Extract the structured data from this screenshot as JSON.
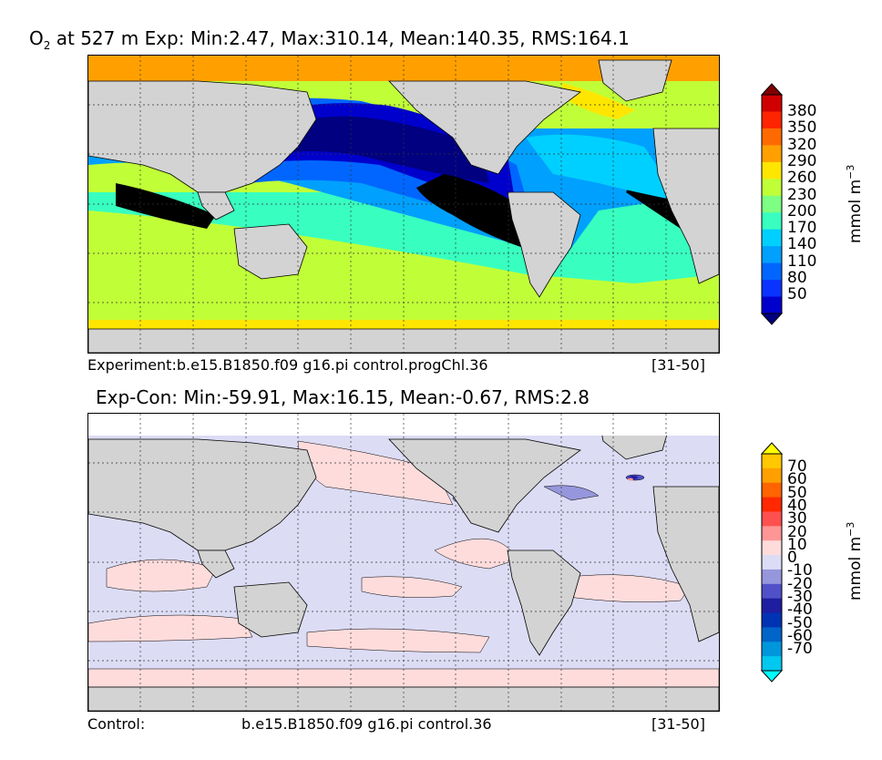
{
  "top": {
    "title_prefix": "O",
    "title_sub": "2",
    "title_rest": " at 527 m Exp: Min:2.47, Max:310.14, Mean:140.35, RMS:164.1",
    "footer_left": "Experiment:b.e15.B1850.f09 g16.pi control.progChl.36",
    "footer_right": "[31-50]",
    "colorbar": {
      "ticks": [
        "380",
        "350",
        "320",
        "290",
        "260",
        "230",
        "200",
        "170",
        "140",
        "110",
        "80",
        "50"
      ],
      "colors": [
        "#000080",
        "#0000cd",
        "#0a33ff",
        "#0066ff",
        "#00a0ff",
        "#00d0ff",
        "#38ffc0",
        "#7cff82",
        "#c0ff38",
        "#ffe600",
        "#ffa000",
        "#ff6a00",
        "#ff2400",
        "#d00000",
        "#800000"
      ],
      "unit": "mmol m",
      "unit_sup": "−3"
    }
  },
  "bottom": {
    "title": "Exp-Con: Min:-59.91, Max:16.15, Mean:-0.67, RMS:2.8",
    "footer_left": "Control:",
    "footer_mid": "b.e15.B1850.f09 g16.pi control.36",
    "footer_right": "[31-50]",
    "colorbar": {
      "ticks": [
        "70",
        "60",
        "50",
        "40",
        "30",
        "20",
        "10",
        "0",
        "-10",
        "-20",
        "-30",
        "-40",
        "-50",
        "-60",
        "-70"
      ],
      "colors": [
        "#00ffff",
        "#00c8f0",
        "#0096dc",
        "#0064c8",
        "#0032b4",
        "#1e1ea0",
        "#5050c8",
        "#9696dc",
        "#dcdcf5",
        "#ffdcdc",
        "#ff9696",
        "#ff5050",
        "#ff2800",
        "#ff6400",
        "#ffa000",
        "#ffc800",
        "#ffff00"
      ],
      "unit": "mmol m",
      "unit_sup": "−3"
    }
  }
}
